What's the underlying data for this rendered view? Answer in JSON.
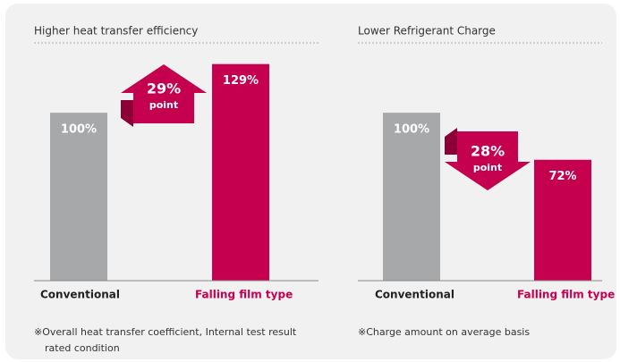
{
  "chart_data": [
    {
      "type": "bar",
      "title": "Higher heat transfer efficiency",
      "categories": [
        "Conventional",
        "Falling film type"
      ],
      "values": [
        100,
        129
      ],
      "value_labels": [
        "100%",
        "129%"
      ],
      "colors": [
        "#a7a8aa",
        "#c5004f"
      ],
      "ylim": [
        0,
        140
      ],
      "annotation": {
        "text": "29%",
        "subtext": "point"
      },
      "note": [
        "※Overall heat transfer coefficient, Internal test result",
        "rated condition"
      ]
    },
    {
      "type": "bar",
      "title": "Lower Refrigerant Charge",
      "categories": [
        "Conventional",
        "Falling film type"
      ],
      "values": [
        100,
        72
      ],
      "value_labels": [
        "100%",
        "72%"
      ],
      "colors": [
        "#a7a8aa",
        "#c5004f"
      ],
      "ylim": [
        0,
        140
      ],
      "annotation": {
        "text": "28%",
        "subtext": "point"
      },
      "note": [
        "※Charge amount on average basis"
      ]
    }
  ]
}
